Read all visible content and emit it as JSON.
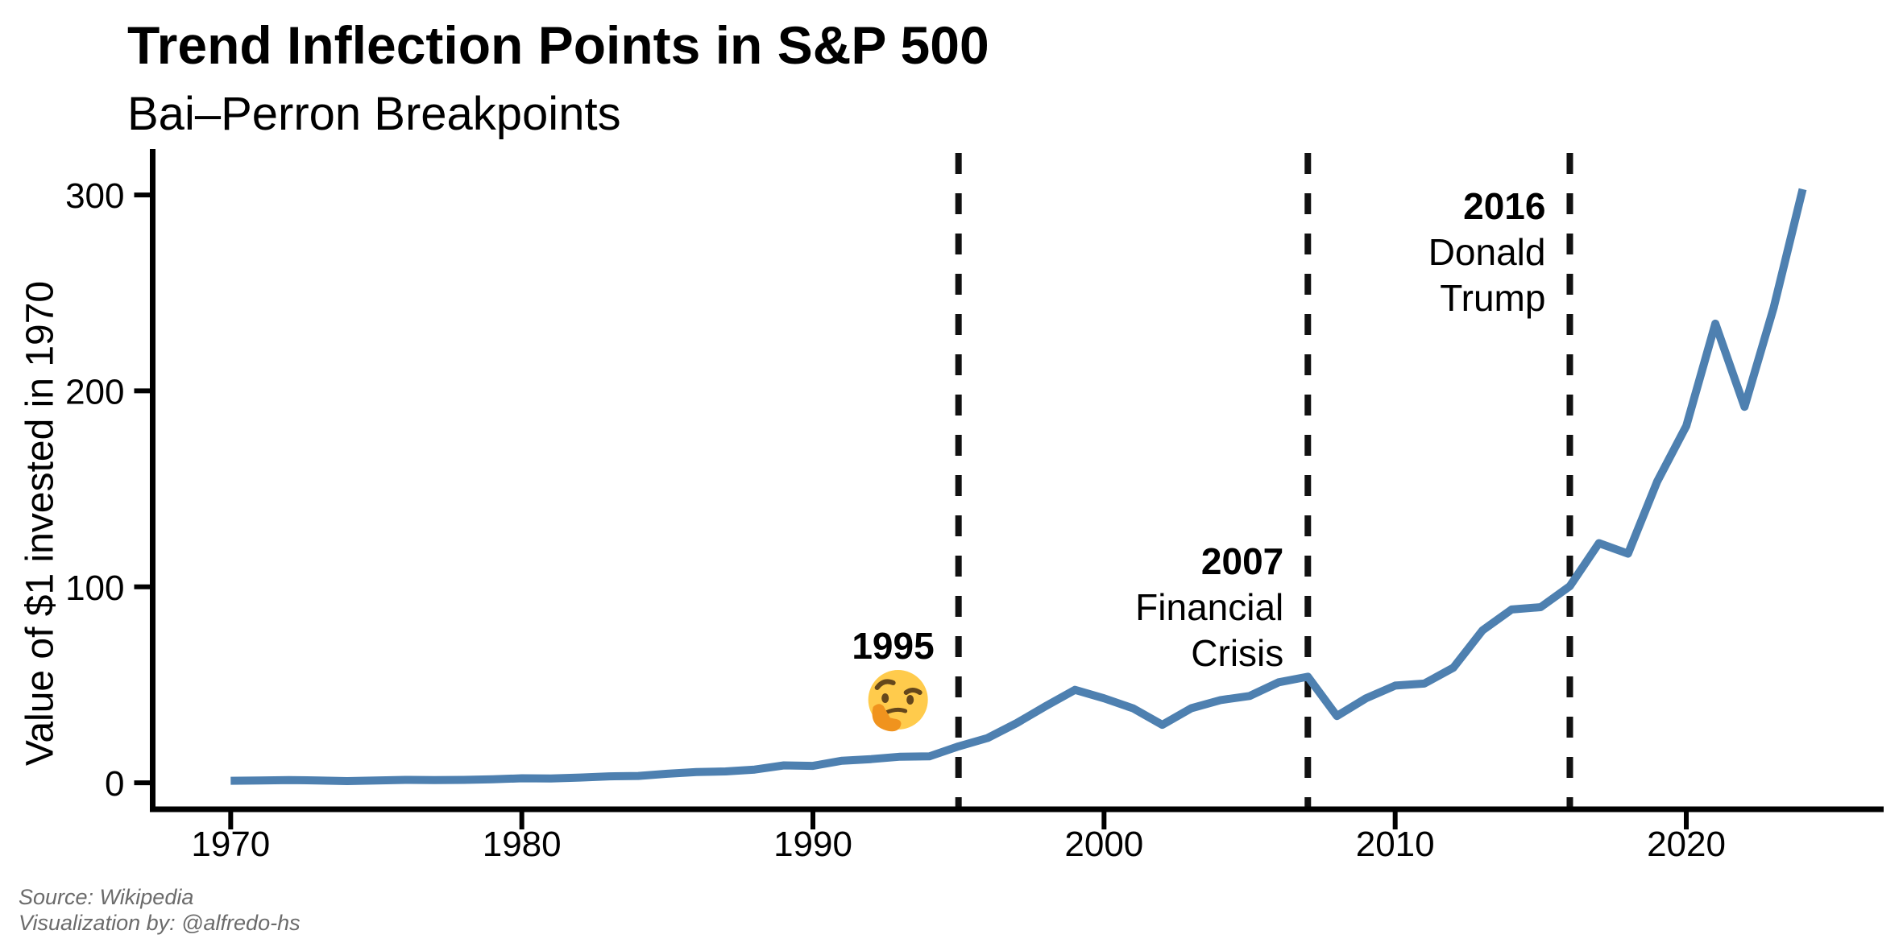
{
  "header": {
    "title": "Trend Inflection Points in S&P 500",
    "subtitle": "Bai–Perron Breakpoints"
  },
  "caption": {
    "line1": "Source: Wikipedia",
    "line2": "Visualization by: @alfredo-hs"
  },
  "colors": {
    "line": "#4e80b0",
    "breakpoint_dash": "#111111",
    "axis": "#000000",
    "text": "#000000",
    "caption_text": "#6b6b6b",
    "emoji_face": "#FFCB4C",
    "emoji_features": "#65471B",
    "emoji_hand": "#F0931E"
  },
  "chart_data": {
    "type": "line",
    "title": "Trend Inflection Points in S&P 500",
    "subtitle": "Bai–Perron Breakpoints",
    "xlabel": "",
    "ylabel": "Value of $1 invested in 1970",
    "grid": false,
    "legend": "none",
    "xlim": [
      1967.32,
      2026.78
    ],
    "ylim": [
      -13.5,
      321.4
    ],
    "x_ticks": [
      1970,
      1980,
      1990,
      2000,
      2010,
      2020
    ],
    "x_tick_labels": [
      "1970",
      "1980",
      "1990",
      "2000",
      "2010",
      "2020"
    ],
    "y_ticks": [
      0,
      100,
      200,
      300
    ],
    "y_tick_labels": [
      "0",
      "100",
      "200",
      "300"
    ],
    "series": [
      {
        "name": "Value of $1 invested in 1970",
        "x": [
          1970,
          1971,
          1972,
          1973,
          1974,
          1975,
          1976,
          1977,
          1978,
          1979,
          1980,
          1981,
          1982,
          1983,
          1984,
          1985,
          1986,
          1987,
          1988,
          1989,
          1990,
          1991,
          1992,
          1993,
          1994,
          1995,
          1996,
          1997,
          1998,
          1999,
          2000,
          2001,
          2002,
          2003,
          2004,
          2005,
          2006,
          2007,
          2008,
          2009,
          2010,
          2011,
          2012,
          2013,
          2014,
          2015,
          2016,
          2017,
          2018,
          2019,
          2020,
          2021,
          2022,
          2023,
          2024
        ],
        "values": [
          1.04,
          1.19,
          1.41,
          1.21,
          0.89,
          1.22,
          1.51,
          1.4,
          1.49,
          1.77,
          2.34,
          2.23,
          2.71,
          3.32,
          3.52,
          4.64,
          5.51,
          5.8,
          6.76,
          8.9,
          8.63,
          11.26,
          12.11,
          13.33,
          13.51,
          18.59,
          22.86,
          30.48,
          39.19,
          47.44,
          43.12,
          38.0,
          29.6,
          38.09,
          42.23,
          44.3,
          51.3,
          54.12,
          34.09,
          43.11,
          49.61,
          50.65,
          58.76,
          77.79,
          88.44,
          89.66,
          100.38,
          122.29,
          116.94,
          153.76,
          182.06,
          234.33,
          191.89,
          242.34,
          302.97
        ]
      }
    ],
    "breakpoints": [
      {
        "year": 1995,
        "label": "1995",
        "note_lines": [],
        "emoji": "thinking-face"
      },
      {
        "year": 2007,
        "label": "2007",
        "note_lines": [
          "Financial",
          "Crisis"
        ]
      },
      {
        "year": 2016,
        "label": "2016",
        "note_lines": [
          "Donald",
          "Trump"
        ]
      }
    ]
  }
}
